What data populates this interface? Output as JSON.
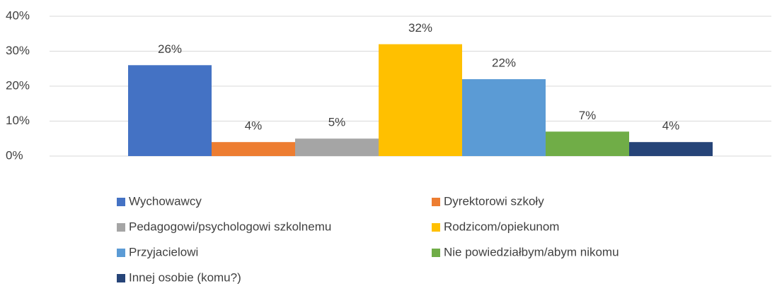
{
  "chart_data": {
    "type": "bar",
    "series": [
      {
        "name": "Wychowawcy",
        "color": "#4472c4",
        "values": [
          26
        ],
        "value_labels": [
          "26%"
        ]
      },
      {
        "name": "Dyrektorowi szkoły",
        "color": "#ed7d31",
        "values": [
          4
        ],
        "value_labels": [
          "4%"
        ]
      },
      {
        "name": "Pedagogowi/psychologowi szkolnemu",
        "color": "#a5a5a5",
        "values": [
          5
        ],
        "value_labels": [
          "5%"
        ]
      },
      {
        "name": "Rodzicom/opiekunom",
        "color": "#ffc000",
        "values": [
          32
        ],
        "value_labels": [
          "32%"
        ]
      },
      {
        "name": "Przyjacielowi",
        "color": "#5b9bd5",
        "values": [
          22
        ],
        "value_labels": [
          "22%"
        ]
      },
      {
        "name": "Nie powiedziałbym/abym nikomu",
        "color": "#70ad47",
        "values": [
          7
        ],
        "value_labels": [
          "7%"
        ]
      },
      {
        "name": "Innej osobie (komu?)",
        "color": "#264478",
        "values": [
          4
        ],
        "value_labels": [
          "4%"
        ]
      }
    ],
    "ylim": [
      0,
      40
    ],
    "yticks": [
      {
        "value": 0,
        "label": "0%"
      },
      {
        "value": 10,
        "label": "10%"
      },
      {
        "value": 20,
        "label": "20%"
      },
      {
        "value": 30,
        "label": "30%"
      },
      {
        "value": 40,
        "label": "40%"
      }
    ],
    "grid": true
  }
}
